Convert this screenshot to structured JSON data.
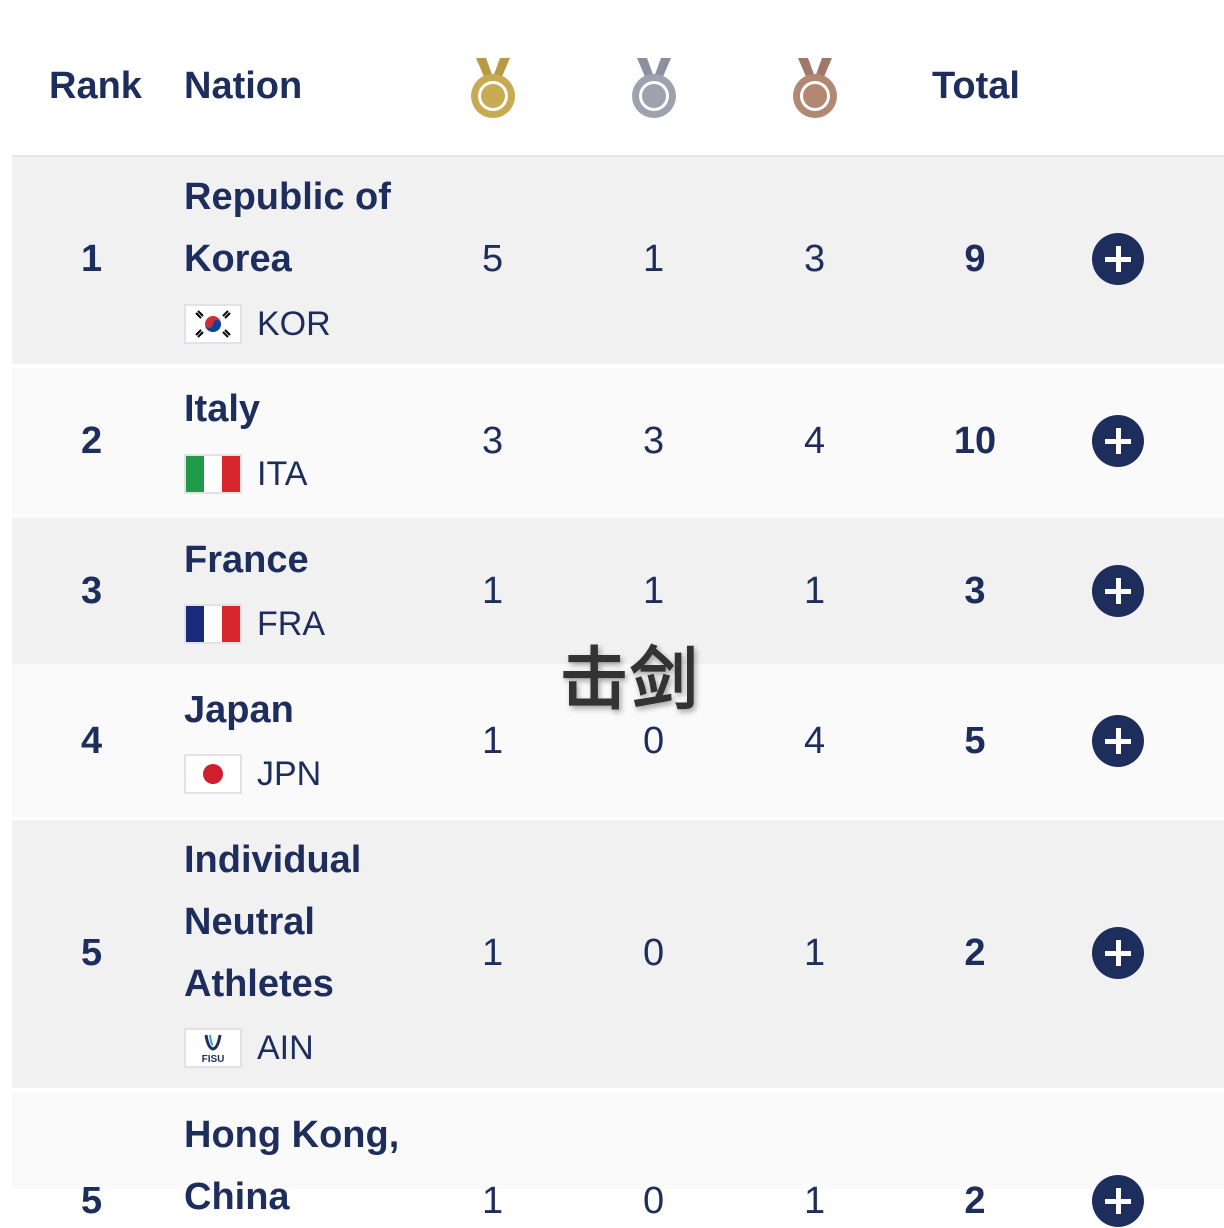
{
  "header": {
    "rank": "Rank",
    "nation": "Nation",
    "gold_icon": "gold-medal-icon",
    "silver_icon": "silver-medal-icon",
    "bronze_icon": "bronze-medal-icon",
    "total": "Total"
  },
  "colors": {
    "navy": "#1d2d5c",
    "gold": "#c8aa52",
    "silver": "#9ea2ae",
    "bronze": "#b28873",
    "row_alt": "#f1f1f2"
  },
  "rows": [
    {
      "rank": "1",
      "name_lines": [
        "Republic of",
        "Korea"
      ],
      "code": "KOR",
      "gold": "5",
      "silver": "1",
      "bronze": "3",
      "total": "9"
    },
    {
      "rank": "2",
      "name_lines": [
        "Italy"
      ],
      "code": "ITA",
      "gold": "3",
      "silver": "3",
      "bronze": "4",
      "total": "10"
    },
    {
      "rank": "3",
      "name_lines": [
        "France"
      ],
      "code": "FRA",
      "gold": "1",
      "silver": "1",
      "bronze": "1",
      "total": "3"
    },
    {
      "rank": "4",
      "name_lines": [
        "Japan"
      ],
      "code": "JPN",
      "gold": "1",
      "silver": "0",
      "bronze": "4",
      "total": "5"
    },
    {
      "rank": "5",
      "name_lines": [
        "Individual",
        "Neutral",
        "Athletes"
      ],
      "code": "AIN",
      "flag_text": "FISU",
      "gold": "1",
      "silver": "0",
      "bronze": "1",
      "total": "2"
    },
    {
      "rank": "5",
      "name_lines": [
        "Hong Kong,",
        "China"
      ],
      "gold": "1",
      "silver": "0",
      "bronze": "1",
      "total": "2"
    }
  ],
  "expand_icon": "plus-circle-icon",
  "watermark": "击剑"
}
